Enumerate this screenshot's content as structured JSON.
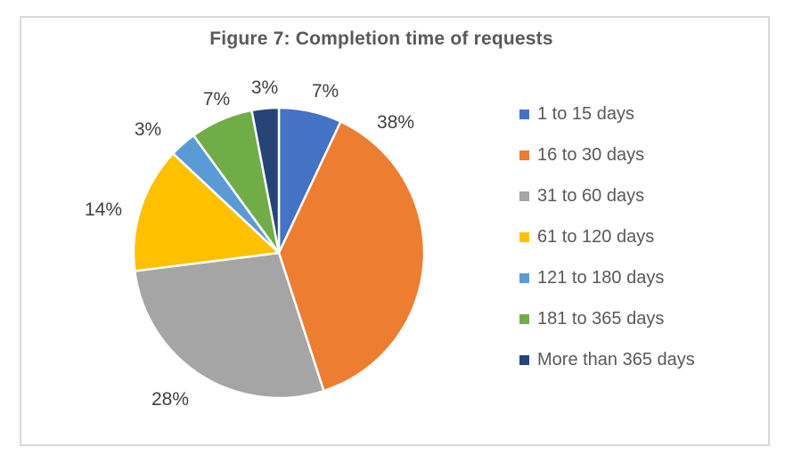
{
  "chart_data": {
    "type": "pie",
    "title": "Figure 7: Completion time of requests",
    "unit": "%",
    "direction": "clockwise",
    "start_angle_deg": 0,
    "legend_position": "right",
    "slices": [
      {
        "label": "1 to 15 days",
        "value": 7,
        "pct_label": "7%",
        "color": "#4472C4"
      },
      {
        "label": "16 to 30 days",
        "value": 38,
        "pct_label": "38%",
        "color": "#ED7D31"
      },
      {
        "label": "31 to 60 days",
        "value": 28,
        "pct_label": "28%",
        "color": "#A5A5A5"
      },
      {
        "label": "61 to 120 days",
        "value": 14,
        "pct_label": "14%",
        "color": "#FFC000"
      },
      {
        "label": "121 to 180 days",
        "value": 3,
        "pct_label": "3%",
        "color": "#5B9BD5"
      },
      {
        "label": "181 to 365 days",
        "value": 7,
        "pct_label": "7%",
        "color": "#70AD47"
      },
      {
        "label": "More than 365 days",
        "value": 3,
        "pct_label": "3%",
        "color": "#264478"
      }
    ],
    "colors": {
      "title_text": "#595959",
      "label_text": "#404040",
      "legend_text": "#595959",
      "frame_border": "#D9D9D9",
      "background": "#FFFFFF",
      "slice_separator": "#FFFFFF"
    }
  }
}
